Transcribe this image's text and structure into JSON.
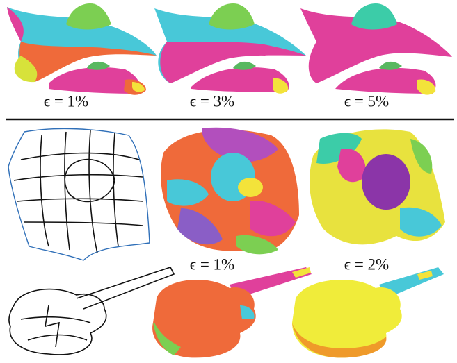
{
  "top_row": {
    "labels": [
      "ϵ = 1%",
      "ϵ = 3%",
      "ϵ = 5%"
    ]
  },
  "bottom_rows": {
    "labels": [
      "ϵ = 1%",
      "ϵ = 2%"
    ]
  }
}
